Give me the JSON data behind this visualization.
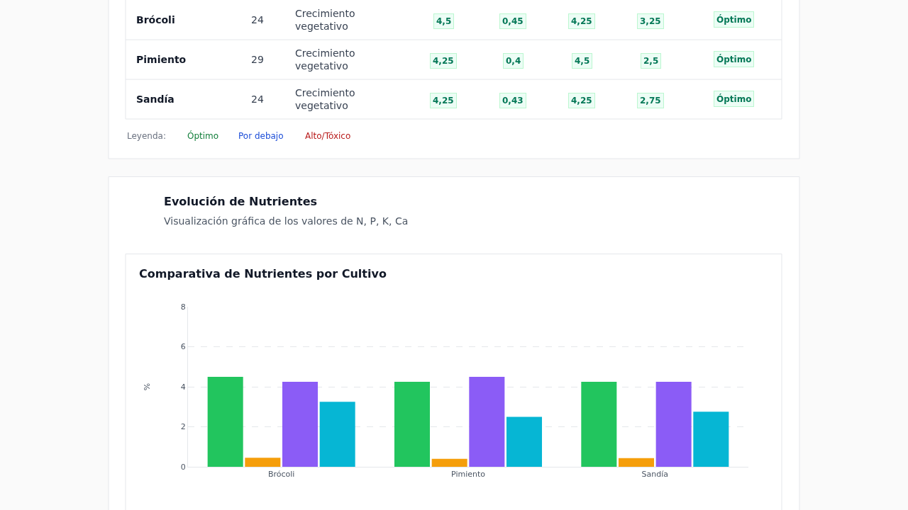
{
  "chart_data": [
    {
      "type": "other",
      "annotations": [
        "Brócoli",
        "24",
        "Crecimiento vegetativo",
        "4,5",
        "0,45",
        "4,25",
        "3,25",
        "Óptimo",
        "Pimiento",
        "29",
        "Crecimiento vegetativo",
        "4,25",
        "0,4",
        "4,5",
        "2,5",
        "Óptimo",
        "Sandía",
        "24",
        "Crecimiento vegetativo",
        "4,25",
        "0,43",
        "4,25",
        "2,75",
        "Óptimo",
        "Leyenda:",
        "Óptimo",
        "Por debajo",
        "Alto/Tóxico"
      ]
    },
    {
      "type": "bar",
      "title": "Evolución de Nutrientes",
      "subtitle": "Visualización gráfica de los valores de N, P, K, Ca",
      "annotations": [
        "Comparativa de Nutrientes por Cultivo"
      ],
      "categories": [
        "Brócoli",
        "Pimiento",
        "Sandía"
      ],
      "series": [
        {
          "color": "#22c55e",
          "values": [
            4.5,
            4.25,
            4.25
          ]
        },
        {
          "color": "#f59e0b",
          "values": [
            0.45,
            0.4,
            0.43
          ]
        },
        {
          "color": "#8b5cf6",
          "values": [
            4.25,
            4.5,
            4.25
          ]
        },
        {
          "color": "#06b6d4",
          "values": [
            3.25,
            2.5,
            2.75
          ]
        }
      ],
      "ylabel": "%",
      "ylim": [
        0,
        8
      ],
      "yticks": [
        0,
        2,
        4,
        6,
        8
      ],
      "grid": "y"
    }
  ]
}
